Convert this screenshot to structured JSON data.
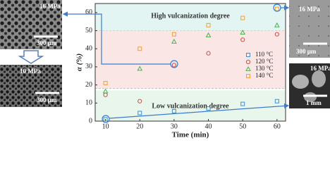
{
  "chart_data": {
    "type": "scatter",
    "x_label": "Time (min)",
    "y_label": "α (%)",
    "x": [
      10,
      20,
      30,
      40,
      50,
      60
    ],
    "xlim": [
      7,
      62.5
    ],
    "xticks": [
      10,
      20,
      30,
      40,
      50,
      60
    ],
    "ylim": [
      0,
      65
    ],
    "yticks": [
      0,
      10,
      20,
      30,
      40,
      50,
      60
    ],
    "series": [
      {
        "name": "110 °C",
        "color": "#3d8fd6",
        "marker": "square",
        "values": [
          1,
          4.5,
          5.5,
          7,
          9.5,
          11
        ]
      },
      {
        "name": "120 °C",
        "color": "#c0504d",
        "marker": "circle",
        "values": [
          14.5,
          11,
          31,
          37.5,
          45,
          48
        ]
      },
      {
        "name": "130 °C",
        "color": "#4caf50",
        "marker": "triangle",
        "values": [
          16.5,
          29,
          44,
          47.5,
          49,
          53
        ]
      },
      {
        "name": "140 °C",
        "color": "#f0a030",
        "marker": "square",
        "values": [
          21,
          40,
          48,
          53,
          57,
          62
        ]
      }
    ],
    "bands": [
      {
        "from": 50,
        "to": 65,
        "color": "#e3f5f3"
      },
      {
        "from": 18,
        "to": 50,
        "color": "#fbe6e6"
      },
      {
        "from": 0,
        "to": 17,
        "color": "#e8f6ec"
      }
    ],
    "annotations": [
      {
        "text": "High vulcanization degree",
        "y": 58
      },
      {
        "text": "Low vulcanization degree",
        "y": 8
      }
    ]
  },
  "panels": [
    {
      "pressure": "16 MPa",
      "scale": "300 μm"
    },
    {
      "pressure": "10 MPa",
      "scale": "300 μm"
    },
    {
      "pressure": "16 MPa",
      "scale": "300 μm"
    },
    {
      "pressure": "16 MPa",
      "scale": "1 mm"
    }
  ]
}
